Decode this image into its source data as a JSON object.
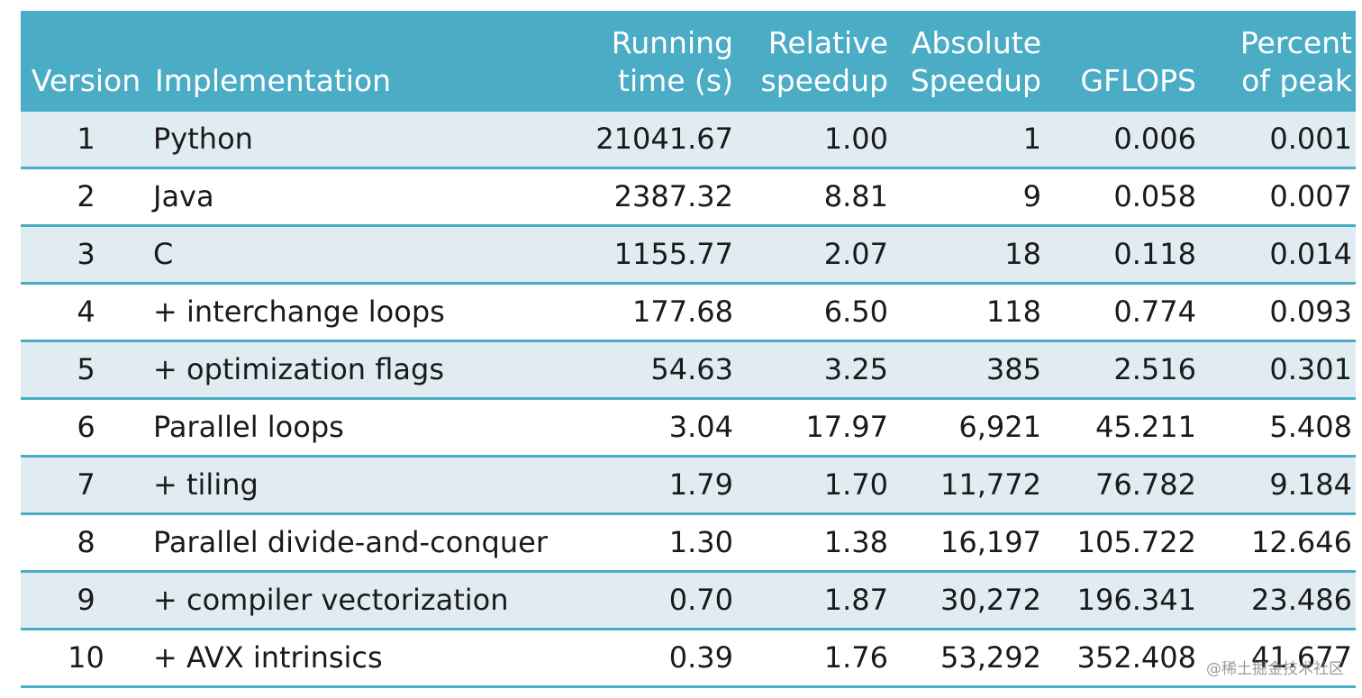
{
  "table": {
    "headers": {
      "version": "Version",
      "implementation": "Implementation",
      "running_time": [
        "Running",
        "time (s)"
      ],
      "relative_speedup": [
        "Relative",
        "speedup"
      ],
      "absolute_speedup": [
        "Absolute",
        "Speedup"
      ],
      "gflops": "GFLOPS",
      "percent_of_peak": [
        "Percent",
        "of peak"
      ]
    },
    "rows": [
      {
        "version": "1",
        "implementation": "Python",
        "running_time": "21041.67",
        "relative_speedup": "1.00",
        "absolute_speedup": "1",
        "gflops": "0.006",
        "percent_of_peak": "0.001"
      },
      {
        "version": "2",
        "implementation": "Java",
        "running_time": "2387.32",
        "relative_speedup": "8.81",
        "absolute_speedup": "9",
        "gflops": "0.058",
        "percent_of_peak": "0.007"
      },
      {
        "version": "3",
        "implementation": "C",
        "running_time": "1155.77",
        "relative_speedup": "2.07",
        "absolute_speedup": "18",
        "gflops": "0.118",
        "percent_of_peak": "0.014"
      },
      {
        "version": "4",
        "implementation": "+ interchange loops",
        "running_time": "177.68",
        "relative_speedup": "6.50",
        "absolute_speedup": "118",
        "gflops": "0.774",
        "percent_of_peak": "0.093"
      },
      {
        "version": "5",
        "implementation": "+ optimization flags",
        "running_time": "54.63",
        "relative_speedup": "3.25",
        "absolute_speedup": "385",
        "gflops": "2.516",
        "percent_of_peak": "0.301"
      },
      {
        "version": "6",
        "implementation": "Parallel loops",
        "running_time": "3.04",
        "relative_speedup": "17.97",
        "absolute_speedup": "6,921",
        "gflops": "45.211",
        "percent_of_peak": "5.408"
      },
      {
        "version": "7",
        "implementation": "+ tiling",
        "running_time": "1.79",
        "relative_speedup": "1.70",
        "absolute_speedup": "11,772",
        "gflops": "76.782",
        "percent_of_peak": "9.184"
      },
      {
        "version": "8",
        "implementation": "Parallel divide-and-conquer",
        "running_time": "1.30",
        "relative_speedup": "1.38",
        "absolute_speedup": "16,197",
        "gflops": "105.722",
        "percent_of_peak": "12.646"
      },
      {
        "version": "9",
        "implementation": "+ compiler vectorization",
        "running_time": "0.70",
        "relative_speedup": "1.87",
        "absolute_speedup": "30,272",
        "gflops": "196.341",
        "percent_of_peak": "23.486"
      },
      {
        "version": "10",
        "implementation": "+ AVX intrinsics",
        "running_time": "0.39",
        "relative_speedup": "1.76",
        "absolute_speedup": "53,292",
        "gflops": "352.408",
        "percent_of_peak": "41.677"
      }
    ]
  },
  "watermark": "@稀土掘金技术社区",
  "colors": {
    "header_bg": "#4bacc6",
    "band_bg": "#e1ecf2",
    "header_text": "#ffffff"
  }
}
